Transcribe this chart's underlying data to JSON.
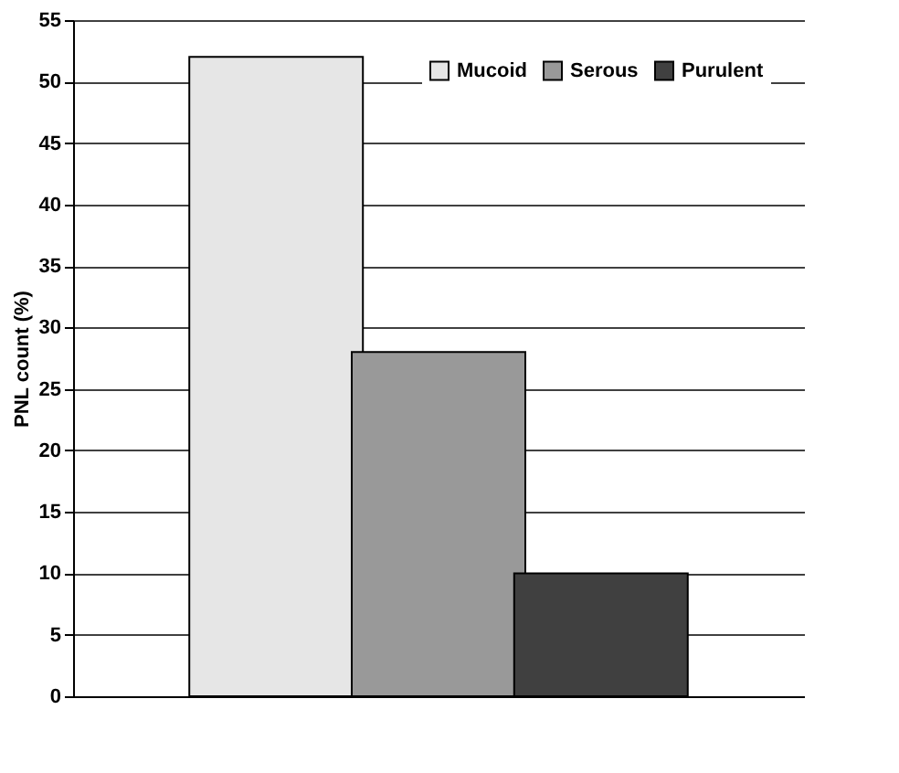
{
  "chart_data": {
    "type": "bar",
    "ylabel": "PNL count (%)",
    "categories": [
      null
    ],
    "series": [
      {
        "name": "Mucoid",
        "color": "#e6e6e6",
        "values": [
          52
        ]
      },
      {
        "name": "Serous",
        "color": "#999999",
        "values": [
          28
        ]
      },
      {
        "name": "Purulent",
        "color": "#404040",
        "values": [
          10
        ]
      }
    ],
    "ylim": [
      0,
      55
    ],
    "yticks": [
      0,
      5,
      10,
      15,
      20,
      25,
      30,
      35,
      40,
      45,
      50,
      55
    ],
    "grid": "y",
    "legend": "top right",
    "tick_labels": "y"
  }
}
